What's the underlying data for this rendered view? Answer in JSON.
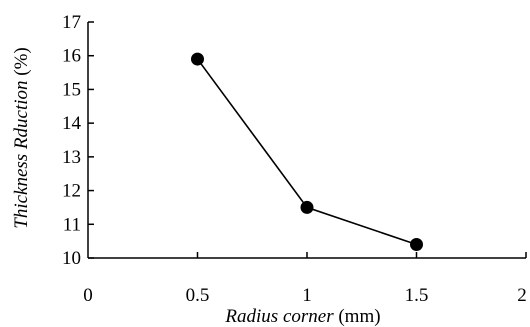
{
  "chart_data": {
    "type": "line",
    "title": "",
    "xlabel_italic": "Radius corner",
    "xlabel_unit": " (mm)",
    "ylabel_italic": "Thickness Rduction",
    "ylabel_unit": " (%)",
    "xlim": [
      0,
      2
    ],
    "ylim": [
      10,
      17
    ],
    "x_ticks": [
      0,
      0.5,
      1,
      1.5,
      2
    ],
    "x_tick_labels": [
      "0",
      "0.5",
      "1",
      "1.5",
      "2"
    ],
    "y_ticks": [
      10,
      11,
      12,
      13,
      14,
      15,
      16,
      17
    ],
    "y_tick_labels": [
      "10",
      "11",
      "12",
      "13",
      "14",
      "15",
      "16",
      "17"
    ],
    "grid": false,
    "legend": "none",
    "series": [
      {
        "x": [
          0.5,
          1,
          1.5
        ],
        "y": [
          15.9,
          11.5,
          10.4
        ],
        "color": "#000000",
        "marker": "circle"
      }
    ]
  }
}
